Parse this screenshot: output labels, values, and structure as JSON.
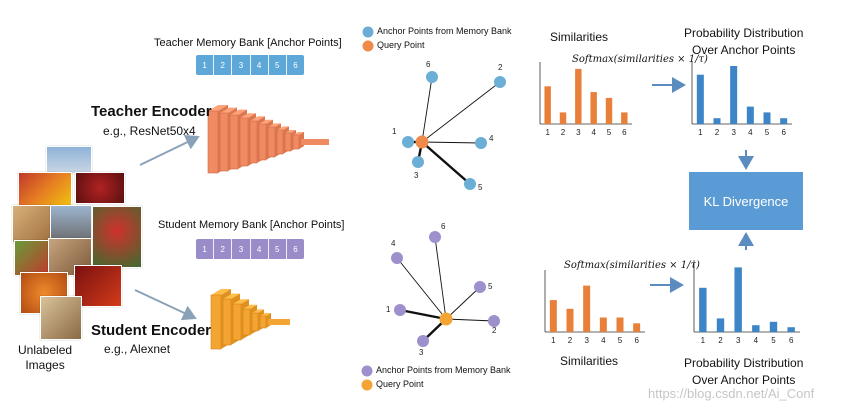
{
  "teacher": {
    "bank_title": "Teacher Memory Bank [Anchor Points]",
    "bank_cells": [
      "1",
      "2",
      "3",
      "4",
      "5",
      "6"
    ],
    "encoder_title": "Teacher Encoder",
    "encoder_sub": "e.g., ResNet50x4"
  },
  "student": {
    "bank_title": "Student Memory Bank [Anchor Points]",
    "bank_cells": [
      "1",
      "2",
      "3",
      "4",
      "5",
      "6"
    ],
    "encoder_title": "Student Encoder",
    "encoder_sub": "e.g., Alexnet"
  },
  "images_label": [
    "Unlabeled",
    "Images"
  ],
  "teacher_graph": {
    "legend_anchor": "Anchor Points from Memory Bank",
    "legend_query": "Query Point",
    "anchor_labels": [
      "1",
      "2",
      "3",
      "4",
      "5",
      "6"
    ]
  },
  "student_graph": {
    "legend_anchor": "Anchor Points from Memory Bank",
    "legend_query": "Query Point",
    "anchor_labels": [
      "1",
      "2",
      "3",
      "4",
      "5",
      "6"
    ]
  },
  "similarities_label": "Similarities",
  "formula_text": "Softmax(similarities × 1/τ)",
  "prob_label": [
    "Probability Distribution",
    "Over Anchor Points"
  ],
  "kl_label": "KL Divergence",
  "watermark": "https://blog.csdn.net/Ai_Conf",
  "colors": {
    "teacher_bank": "#5da8d8",
    "student_bank": "#9a8cc9",
    "teacher_encoder": "#ef8a62",
    "student_encoder": "#f3a432",
    "anchor_teacher": "#6baed6",
    "anchor_student": "#9e90cc",
    "query": "#f08a4b",
    "bar_orange": "#e9803a",
    "bar_blue": "#3d85c6",
    "kl": "#5b9bd5"
  },
  "chart_data": [
    {
      "type": "bar",
      "title": "Similarities",
      "categories": [
        "1",
        "2",
        "3",
        "4",
        "5",
        "6"
      ],
      "values": [
        0.65,
        0.2,
        0.95,
        0.55,
        0.45,
        0.2
      ]
    },
    {
      "type": "bar",
      "title": "Probability Distribution Over Anchor Points",
      "categories": [
        "1",
        "2",
        "3",
        "4",
        "5",
        "6"
      ],
      "values": [
        0.85,
        0.1,
        1.0,
        0.3,
        0.2,
        0.1
      ]
    },
    {
      "type": "bar",
      "title": "Similarities",
      "categories": [
        "1",
        "2",
        "3",
        "4",
        "5",
        "6"
      ],
      "values": [
        0.55,
        0.4,
        0.8,
        0.25,
        0.25,
        0.15
      ]
    },
    {
      "type": "bar",
      "title": "Probability Distribution Over Anchor Points",
      "categories": [
        "1",
        "2",
        "3",
        "4",
        "5",
        "6"
      ],
      "values": [
        0.65,
        0.2,
        0.95,
        0.1,
        0.15,
        0.07
      ]
    }
  ]
}
